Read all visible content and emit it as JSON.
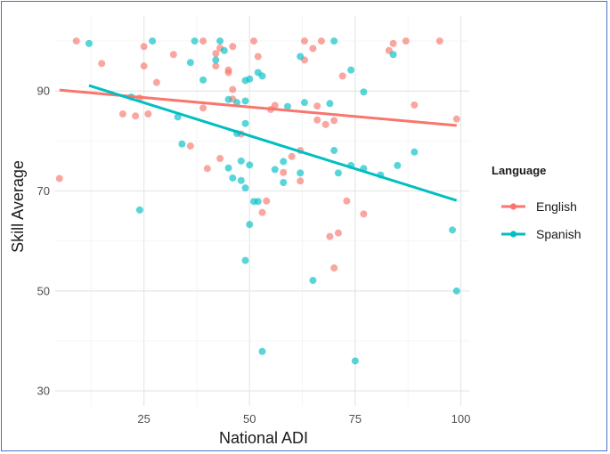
{
  "chart_data": {
    "type": "scatter",
    "xlabel": "National ADI",
    "ylabel": "Skill Average",
    "xlim": [
      4,
      102
    ],
    "ylim": [
      27,
      105
    ],
    "xticks": [
      25,
      50,
      75,
      100
    ],
    "yticks": [
      30,
      50,
      70,
      90
    ],
    "grid": true,
    "legend": {
      "title": "Language",
      "position": "right"
    },
    "series": [
      {
        "name": "English",
        "color": "#f8766d",
        "trend": {
          "x": [
            5,
            99
          ],
          "y": [
            90.2,
            83.1
          ]
        },
        "points": [
          [
            5,
            72.5
          ],
          [
            9,
            100
          ],
          [
            15,
            95.5
          ],
          [
            20,
            85.4
          ],
          [
            23,
            85
          ],
          [
            24,
            88.6
          ],
          [
            25,
            95
          ],
          [
            25,
            98.9
          ],
          [
            26,
            85.4
          ],
          [
            28,
            91.7
          ],
          [
            32,
            97.3
          ],
          [
            36,
            79
          ],
          [
            39,
            100
          ],
          [
            39,
            86.6
          ],
          [
            40,
            74.5
          ],
          [
            42,
            97.5
          ],
          [
            42,
            95
          ],
          [
            43,
            98.6
          ],
          [
            43,
            76.5
          ],
          [
            45,
            93.7
          ],
          [
            45,
            94.2
          ],
          [
            46,
            98.9
          ],
          [
            46,
            90.3
          ],
          [
            46,
            88.4
          ],
          [
            48,
            81.4
          ],
          [
            51,
            100
          ],
          [
            52,
            96.9
          ],
          [
            53,
            65.7
          ],
          [
            54,
            68
          ],
          [
            55,
            86.3
          ],
          [
            56,
            87.1
          ],
          [
            58,
            73.7
          ],
          [
            60,
            76.9
          ],
          [
            62,
            78.1
          ],
          [
            62,
            72
          ],
          [
            63,
            100
          ],
          [
            63,
            96.2
          ],
          [
            65,
            98.5
          ],
          [
            66,
            84.2
          ],
          [
            66,
            87
          ],
          [
            67,
            100
          ],
          [
            68,
            83.3
          ],
          [
            69,
            60.9
          ],
          [
            70,
            84.1
          ],
          [
            70,
            54.6
          ],
          [
            71,
            61.6
          ],
          [
            72,
            93
          ],
          [
            73,
            68
          ],
          [
            77,
            65.4
          ],
          [
            83,
            98.1
          ],
          [
            84,
            99.5
          ],
          [
            87,
            100
          ],
          [
            89,
            87.2
          ],
          [
            95,
            100
          ],
          [
            99,
            84.4
          ]
        ]
      },
      {
        "name": "Spanish",
        "color": "#00bfc4",
        "trend": {
          "x": [
            12,
            99
          ],
          "y": [
            91.1,
            68.1
          ]
        },
        "points": [
          [
            12,
            99.5
          ],
          [
            22,
            88.8
          ],
          [
            24,
            66.2
          ],
          [
            27,
            100
          ],
          [
            33,
            84.8
          ],
          [
            34,
            79.4
          ],
          [
            36,
            95.7
          ],
          [
            37,
            100
          ],
          [
            39,
            92.2
          ],
          [
            42,
            96.2
          ],
          [
            43,
            100
          ],
          [
            44,
            98.1
          ],
          [
            45,
            74.6
          ],
          [
            45,
            88.3
          ],
          [
            46,
            72.6
          ],
          [
            47,
            81.5
          ],
          [
            47,
            87.7
          ],
          [
            48,
            76
          ],
          [
            48,
            72.1
          ],
          [
            49,
            70.6
          ],
          [
            49,
            83.5
          ],
          [
            49,
            92.1
          ],
          [
            49,
            88
          ],
          [
            49,
            56.1
          ],
          [
            50,
            92.4
          ],
          [
            50,
            75.2
          ],
          [
            50,
            63.3
          ],
          [
            51,
            67.9
          ],
          [
            52,
            93.7
          ],
          [
            52,
            67.9
          ],
          [
            53,
            93
          ],
          [
            53,
            37.9
          ],
          [
            56,
            74.3
          ],
          [
            58,
            75.9
          ],
          [
            58,
            71.7
          ],
          [
            59,
            86.9
          ],
          [
            62,
            96.9
          ],
          [
            62,
            73.6
          ],
          [
            63,
            87.7
          ],
          [
            65,
            52.1
          ],
          [
            69,
            87.5
          ],
          [
            70,
            78.1
          ],
          [
            70,
            100
          ],
          [
            71,
            73.6
          ],
          [
            74,
            94.2
          ],
          [
            74,
            75.1
          ],
          [
            75,
            36
          ],
          [
            77,
            74.5
          ],
          [
            77,
            89.8
          ],
          [
            81,
            73.2
          ],
          [
            84,
            97.3
          ],
          [
            85,
            75.1
          ],
          [
            89,
            77.8
          ],
          [
            98,
            62.2
          ],
          [
            99,
            50
          ]
        ]
      }
    ]
  }
}
